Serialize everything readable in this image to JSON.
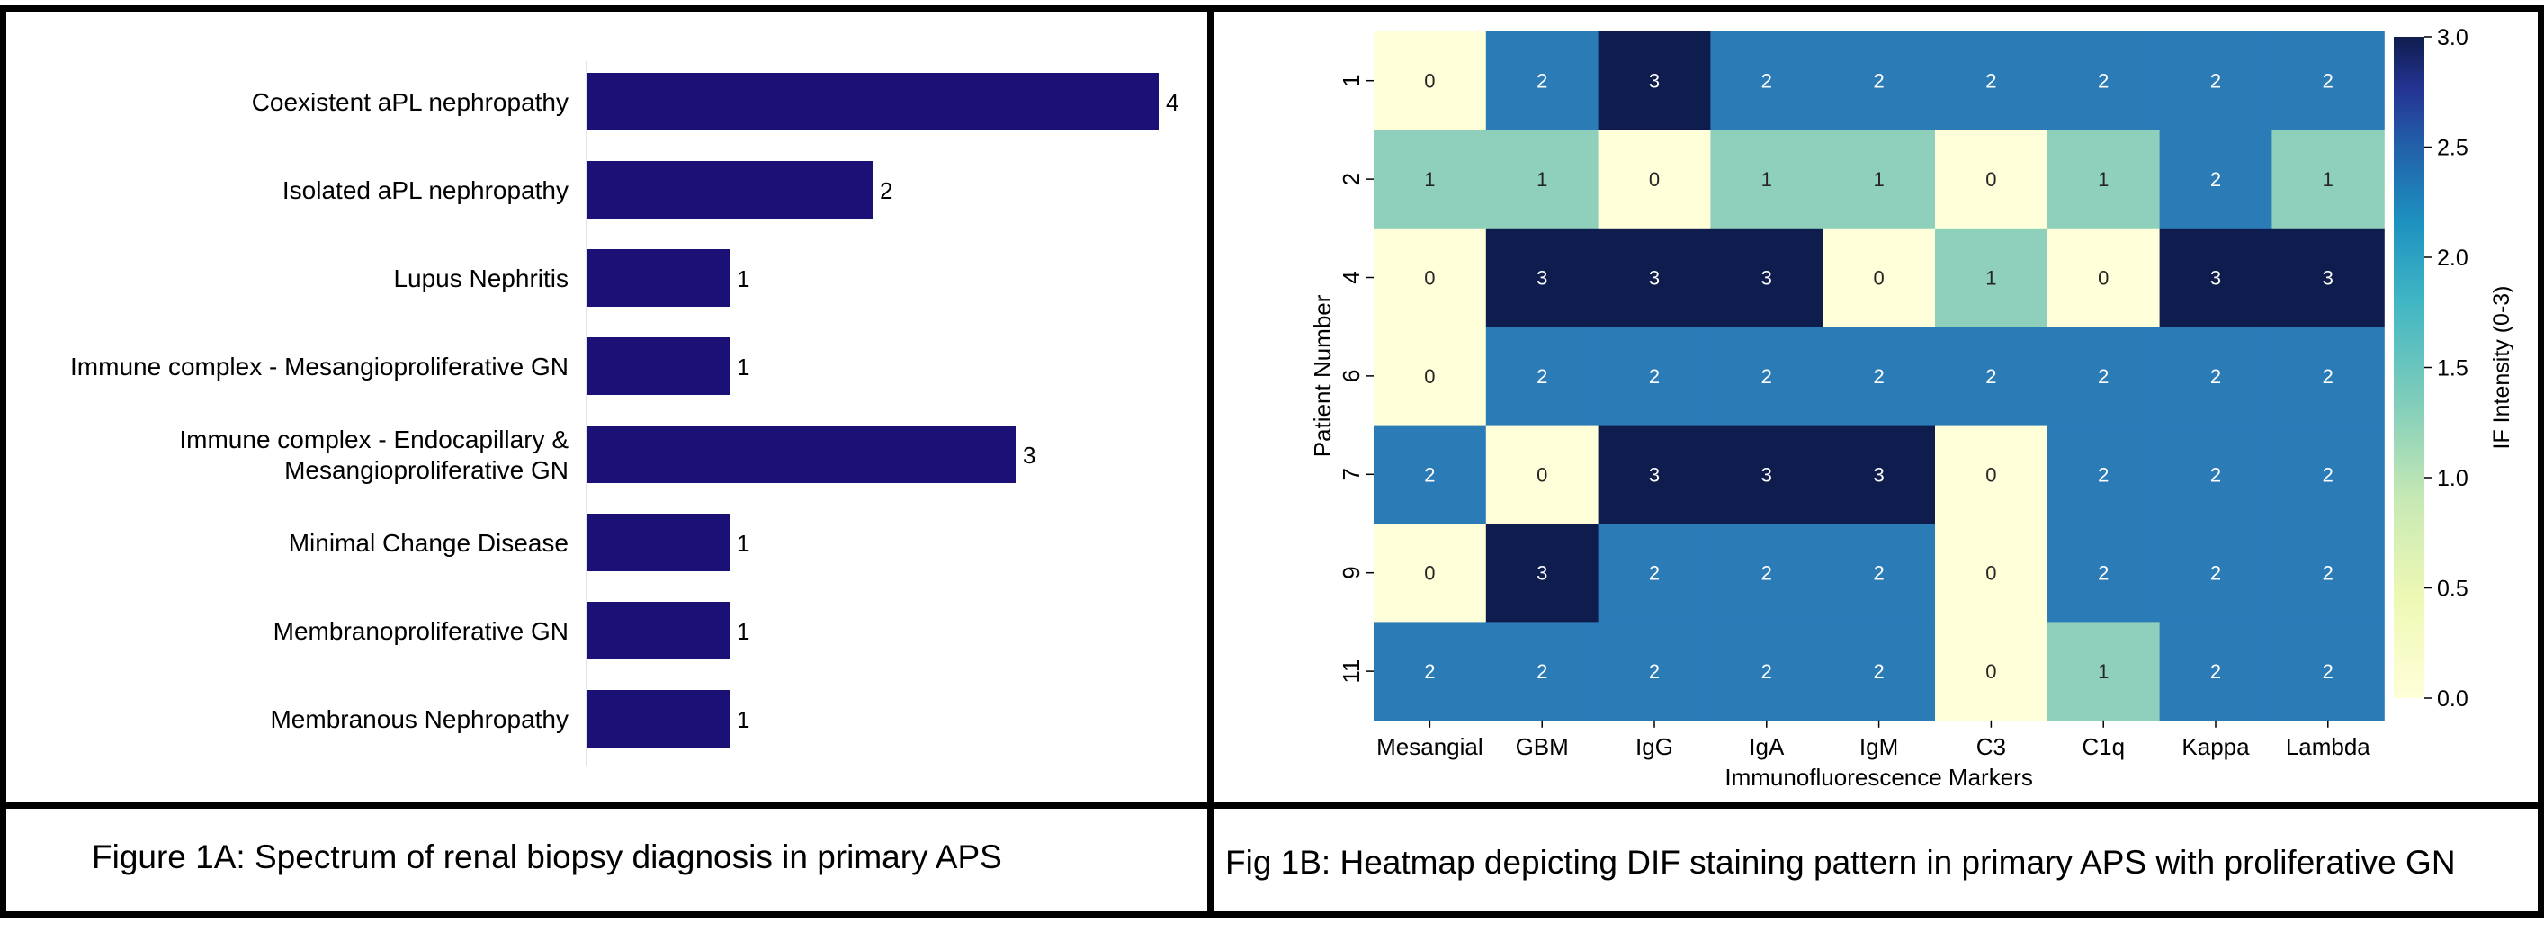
{
  "figure": {
    "caption_a": "Figure 1A: Spectrum of renal biopsy diagnosis in primary APS",
    "caption_b": "Fig 1B: Heatmap depicting DIF staining pattern in primary APS with proliferative GN"
  },
  "colors": {
    "bar": "#1a1075",
    "heatmap_colormap": "YlGnBu",
    "heat_0": "#ffffd9",
    "heat_1": "#8fd0bc",
    "heat_2": "#2b7bb7",
    "heat_3": "#0f1d4e"
  },
  "chart_data": [
    {
      "type": "bar",
      "orientation": "horizontal",
      "title": "",
      "xlabel": "",
      "ylabel": "",
      "categories": [
        [
          "Coexistent aPL nephropathy"
        ],
        [
          "Isolated aPL nephropathy"
        ],
        [
          "Lupus Nephritis"
        ],
        [
          "Immune complex - Mesangioproliferative GN"
        ],
        [
          "Immune complex - Endocapillary &",
          "Mesangioproliferative GN"
        ],
        [
          "Minimal Change Disease"
        ],
        [
          "Membranoproliferative GN"
        ],
        [
          "Membranous Nephropathy"
        ]
      ],
      "values": [
        4,
        2,
        1,
        1,
        3,
        1,
        1,
        1
      ],
      "xlim": [
        0,
        4
      ],
      "data_labels": true,
      "grid": false
    },
    {
      "type": "heatmap",
      "title": "",
      "xlabel": "Immunofluorescence Markers",
      "ylabel": "Patient Number",
      "x": [
        "Mesangial",
        "GBM",
        "IgG",
        "IgA",
        "IgM",
        "C3",
        "C1q",
        "Kappa",
        "Lambda"
      ],
      "y": [
        "1",
        "2",
        "4",
        "6",
        "7",
        "9",
        "11"
      ],
      "values": [
        [
          0,
          2,
          3,
          2,
          2,
          2,
          2,
          2,
          2
        ],
        [
          1,
          1,
          0,
          1,
          1,
          0,
          1,
          2,
          1
        ],
        [
          0,
          3,
          3,
          3,
          0,
          1,
          0,
          3,
          3
        ],
        [
          0,
          2,
          2,
          2,
          2,
          2,
          2,
          2,
          2
        ],
        [
          2,
          0,
          3,
          3,
          3,
          0,
          2,
          2,
          2
        ],
        [
          0,
          3,
          2,
          2,
          2,
          0,
          2,
          2,
          2
        ],
        [
          2,
          2,
          2,
          2,
          2,
          0,
          1,
          2,
          2
        ]
      ],
      "colorbar": {
        "label": "IF Intensity (0-3)",
        "range": [
          0,
          3
        ],
        "ticks": [
          "0.0",
          "0.5",
          "1.0",
          "1.5",
          "2.0",
          "2.5",
          "3.0"
        ]
      },
      "annotations": true
    }
  ]
}
